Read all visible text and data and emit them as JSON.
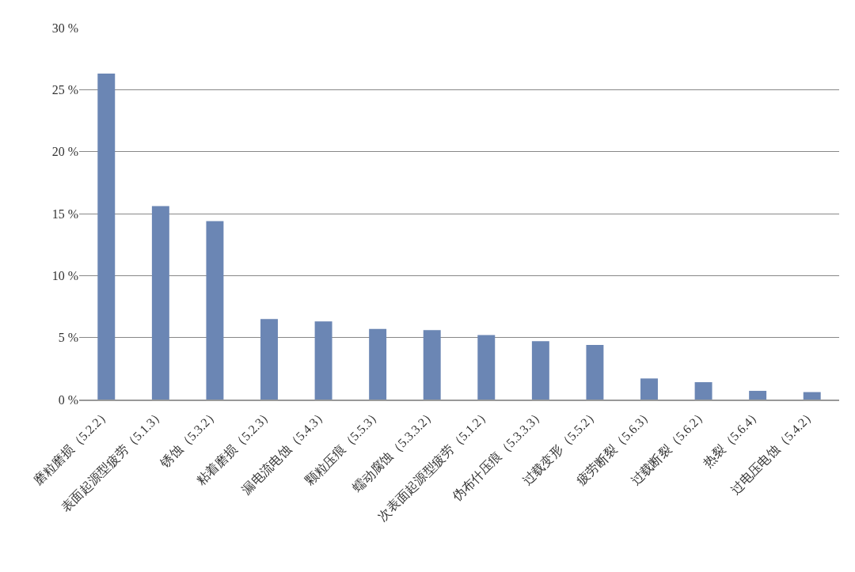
{
  "chart_data": {
    "type": "bar",
    "categories": [
      "磨粒磨损（5.2.2）",
      "表面起源型疲劳（5.1.3）",
      "锈蚀（5.3.2）",
      "粘着磨损（5.2.3）",
      "漏电流电蚀（5.4.3）",
      "颗粒压痕（5.5.3）",
      "蠕动腐蚀（5.3.3.2）",
      "次表面起源型疲劳（5.1.2）",
      "伪布什压痕（5.3.3.3）",
      "过载变形（5.5.2）",
      "疲劳断裂（5.6.3）",
      "过载断裂（5.6.2）",
      "热裂（5.6.4）",
      "过电压电蚀（5.4.2）"
    ],
    "values": [
      26.3,
      15.6,
      14.4,
      6.5,
      6.3,
      5.7,
      5.6,
      5.2,
      4.7,
      4.4,
      1.7,
      1.4,
      0.7,
      0.6
    ],
    "color": "#6b86b4",
    "ylim": [
      0,
      30
    ],
    "yticks": [
      {
        "value": 0,
        "label": "0 %"
      },
      {
        "value": 5,
        "label": "5 %"
      },
      {
        "value": 10,
        "label": "10 %"
      },
      {
        "value": 15,
        "label": "15 %"
      },
      {
        "value": 20,
        "label": "20 %"
      },
      {
        "value": 25,
        "label": "25 %"
      },
      {
        "value": 30,
        "label": "30 %"
      }
    ],
    "grid": "y"
  }
}
